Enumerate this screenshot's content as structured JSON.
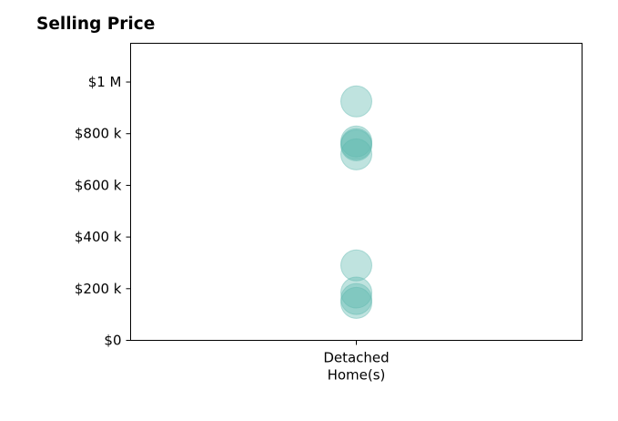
{
  "chart_data": {
    "type": "scatter",
    "title": "Selling Price",
    "xlabel": "",
    "ylabel": "",
    "categories": [
      "Detached\nHome(s)"
    ],
    "x_tick_labels": [
      [
        "Detached",
        "Home(s)"
      ]
    ],
    "ylim": [
      0,
      1150000
    ],
    "y_ticks": [
      0,
      200000,
      400000,
      600000,
      800000,
      1000000
    ],
    "y_tick_labels": [
      "$0",
      "$200 k",
      "$400 k",
      "$600 k",
      "$800 k",
      "$1 M"
    ],
    "grid": false,
    "series": [
      {
        "color": "#5fb8b0",
        "points": [
          {
            "category": "Detached\nHome(s)",
            "y": 925000
          },
          {
            "category": "Detached\nHome(s)",
            "y": 770000
          },
          {
            "category": "Detached\nHome(s)",
            "y": 760000
          },
          {
            "category": "Detached\nHome(s)",
            "y": 755000
          },
          {
            "category": "Detached\nHome(s)",
            "y": 720000
          },
          {
            "category": "Detached\nHome(s)",
            "y": 290000
          },
          {
            "category": "Detached\nHome(s)",
            "y": 185000
          },
          {
            "category": "Detached\nHome(s)",
            "y": 160000
          },
          {
            "category": "Detached\nHome(s)",
            "y": 145000
          }
        ]
      }
    ]
  }
}
